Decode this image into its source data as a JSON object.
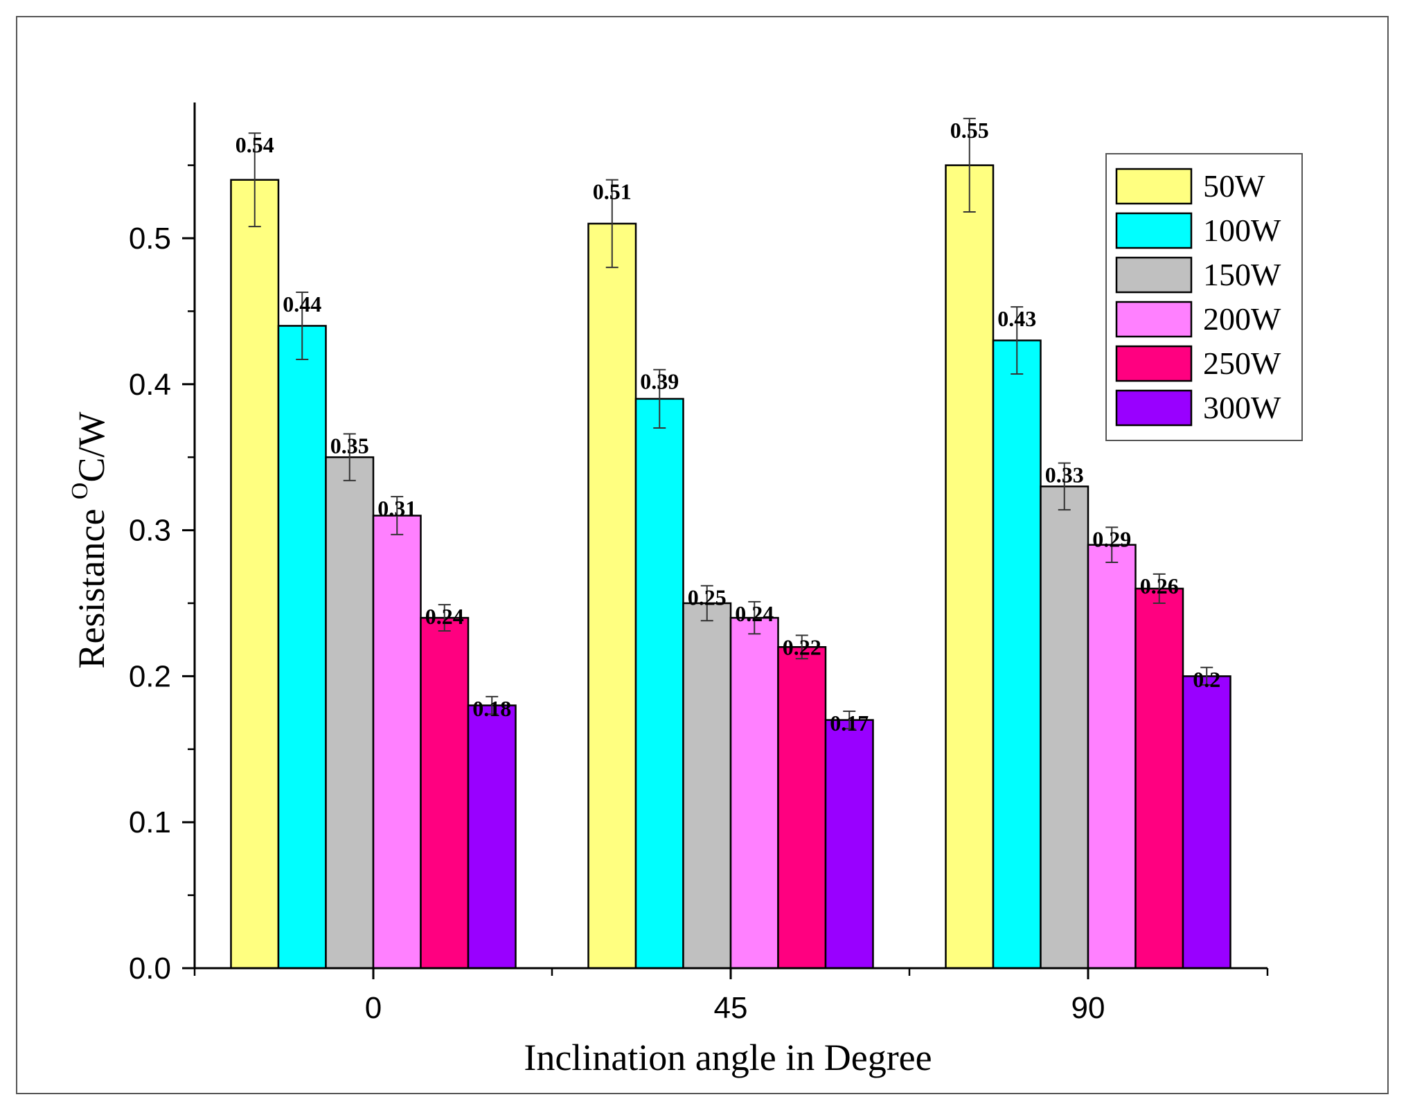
{
  "chart_data": {
    "type": "bar",
    "title": "",
    "xlabel": "Inclination angle in Degree",
    "ylabel_main": "Resistance ",
    "ylabel_sup": "O",
    "ylabel_unit": "C/W",
    "ylim": [
      0,
      0.6
    ],
    "yticks": [
      0.0,
      0.1,
      0.2,
      0.3,
      0.4,
      0.5
    ],
    "ytick_labels": [
      "0.0",
      "0.1",
      "0.2",
      "0.3",
      "0.4",
      "0.5"
    ],
    "categories": [
      "0",
      "45",
      "90"
    ],
    "legend_position": "top-right",
    "series": [
      {
        "name": "50W",
        "color": "#FFFF80",
        "values": [
          0.54,
          0.51,
          0.55
        ],
        "labels": [
          "0.54",
          "0.51",
          "0.55"
        ],
        "errors": [
          0.032,
          0.03,
          0.032
        ]
      },
      {
        "name": "100W",
        "color": "#00FFFF",
        "values": [
          0.44,
          0.39,
          0.43
        ],
        "labels": [
          "0.44",
          "0.39",
          "0.43"
        ],
        "errors": [
          0.023,
          0.02,
          0.023
        ]
      },
      {
        "name": "150W",
        "color": "#C0C0C0",
        "values": [
          0.35,
          0.25,
          0.33
        ],
        "labels": [
          "0.35",
          "0.25",
          "0.33"
        ],
        "errors": [
          0.016,
          0.012,
          0.016
        ]
      },
      {
        "name": "200W",
        "color": "#FF80FF",
        "values": [
          0.31,
          0.24,
          0.29
        ],
        "labels": [
          "0.31",
          "0.24",
          "0.29"
        ],
        "errors": [
          0.013,
          0.011,
          0.012
        ]
      },
      {
        "name": "250W",
        "color": "#FF0080",
        "values": [
          0.24,
          0.22,
          0.26
        ],
        "labels": [
          "0.24",
          "0.22",
          "0.26"
        ],
        "errors": [
          0.009,
          0.008,
          0.01
        ]
      },
      {
        "name": "300W",
        "color": "#9900FF",
        "values": [
          0.18,
          0.17,
          0.2
        ],
        "labels": [
          "0.18",
          "0.17",
          "0.2"
        ],
        "errors": [
          0.006,
          0.006,
          0.006
        ]
      }
    ]
  }
}
